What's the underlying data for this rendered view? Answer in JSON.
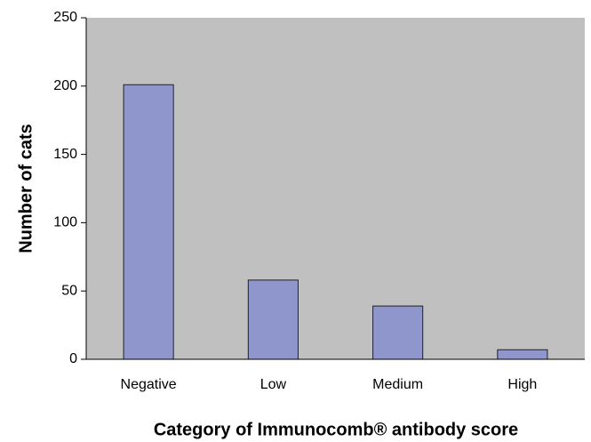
{
  "chart_data": {
    "type": "bar",
    "xlabel": "Category of Immunocomb® antibody score",
    "ylabel": "Number of cats",
    "categories": [
      "Negative",
      "Low",
      "Medium",
      "High"
    ],
    "values": [
      201,
      58,
      39,
      7
    ],
    "color": "#8f96cc",
    "background": "#c0c0c0",
    "ylim": [
      0,
      250
    ],
    "yticks": [
      0,
      50,
      100,
      150,
      200,
      250
    ],
    "grid": false
  }
}
